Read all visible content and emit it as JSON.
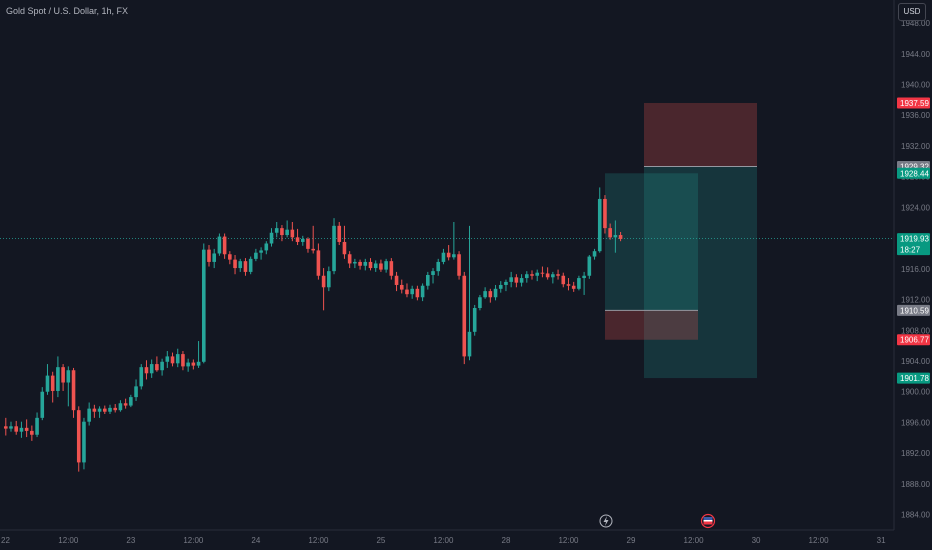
{
  "header": {
    "title": "Gold Spot / U.S. Dollar, 1h, FX",
    "currency_label": "USD"
  },
  "colors": {
    "background": "#131722",
    "up": "#26a69a",
    "down": "#ef5350",
    "grid_text": "#787b86",
    "axis_line": "#2a2e39",
    "profit_zone": "#26a69a",
    "loss_zone": "#ef5350"
  },
  "icons": [
    "lightning-icon",
    "flag-icon"
  ],
  "chart_data": {
    "type": "candlestick",
    "symbol": "Gold Spot / U.S. Dollar",
    "interval": "1h",
    "source": "FX",
    "ylim": [
      1882,
      1951
    ],
    "y_ticks": [
      1884,
      1888,
      1892,
      1896,
      1900,
      1904,
      1908,
      1912,
      1916,
      1920,
      1924,
      1928,
      1932,
      1936,
      1940,
      1944,
      1948
    ],
    "x_ticks": [
      {
        "label": "22",
        "t": 0
      },
      {
        "label": "12:00",
        "t": 12
      },
      {
        "label": "23",
        "t": 24
      },
      {
        "label": "12:00",
        "t": 36
      },
      {
        "label": "24",
        "t": 48
      },
      {
        "label": "12:00",
        "t": 60
      },
      {
        "label": "25",
        "t": 72
      },
      {
        "label": "12:00",
        "t": 84
      },
      {
        "label": "28",
        "t": 96
      },
      {
        "label": "12:00",
        "t": 108
      },
      {
        "label": "29",
        "t": 120
      },
      {
        "label": "12:00",
        "t": 132
      },
      {
        "label": "30",
        "t": 144
      },
      {
        "label": "12:00",
        "t": 156
      },
      {
        "label": "31",
        "t": 168
      }
    ],
    "candles": [
      [
        1895.5,
        1896.6,
        1894.3,
        1895.2
      ],
      [
        1895.2,
        1896.1,
        1894.8,
        1895.5
      ],
      [
        1895.5,
        1896.2,
        1894.4,
        1894.8
      ],
      [
        1894.8,
        1896.1,
        1894.0,
        1895.3
      ],
      [
        1895.3,
        1896.4,
        1894.1,
        1894.9
      ],
      [
        1894.9,
        1895.6,
        1893.6,
        1894.4
      ],
      [
        1894.4,
        1897.3,
        1894.1,
        1896.6
      ],
      [
        1896.6,
        1900.6,
        1896.3,
        1900.0
      ],
      [
        1900.0,
        1903.6,
        1899.6,
        1902.1
      ],
      [
        1902.1,
        1902.6,
        1898.6,
        1900.1
      ],
      [
        1900.1,
        1904.6,
        1899.3,
        1903.2
      ],
      [
        1903.2,
        1903.6,
        1900.1,
        1901.2
      ],
      [
        1901.2,
        1903.3,
        1898.1,
        1902.8
      ],
      [
        1902.8,
        1903.1,
        1896.6,
        1897.6
      ],
      [
        1897.6,
        1898.1,
        1889.6,
        1890.8
      ],
      [
        1890.8,
        1896.6,
        1889.9,
        1896.1
      ],
      [
        1896.1,
        1898.6,
        1895.6,
        1897.8
      ],
      [
        1897.8,
        1898.3,
        1896.6,
        1897.4
      ],
      [
        1897.4,
        1898.1,
        1896.6,
        1897.8
      ],
      [
        1897.8,
        1898.2,
        1897.1,
        1897.4
      ],
      [
        1897.4,
        1898.3,
        1897.1,
        1897.9
      ],
      [
        1897.9,
        1898.4,
        1897.3,
        1897.6
      ],
      [
        1897.6,
        1898.9,
        1897.4,
        1898.5
      ],
      [
        1898.5,
        1899.1,
        1897.8,
        1898.2
      ],
      [
        1898.2,
        1899.6,
        1898.0,
        1899.3
      ],
      [
        1899.3,
        1901.6,
        1898.8,
        1900.7
      ],
      [
        1900.7,
        1903.6,
        1900.3,
        1903.2
      ],
      [
        1903.2,
        1904.1,
        1901.6,
        1902.4
      ],
      [
        1902.4,
        1904.2,
        1901.8,
        1903.6
      ],
      [
        1903.6,
        1904.6,
        1902.6,
        1902.8
      ],
      [
        1902.8,
        1904.3,
        1902.1,
        1903.9
      ],
      [
        1903.9,
        1905.3,
        1903.1,
        1904.6
      ],
      [
        1904.6,
        1905.1,
        1903.3,
        1903.7
      ],
      [
        1903.7,
        1905.6,
        1903.2,
        1904.9
      ],
      [
        1904.9,
        1905.3,
        1902.8,
        1903.3
      ],
      [
        1903.3,
        1904.3,
        1902.6,
        1903.8
      ],
      [
        1903.8,
        1904.2,
        1902.9,
        1903.4
      ],
      [
        1903.4,
        1906.6,
        1903.1,
        1903.9
      ],
      [
        1903.9,
        1919.3,
        1903.7,
        1918.5
      ],
      [
        1918.5,
        1919.1,
        1916.3,
        1916.9
      ],
      [
        1916.9,
        1918.6,
        1916.1,
        1918.0
      ],
      [
        1918.0,
        1920.6,
        1917.7,
        1920.2
      ],
      [
        1920.2,
        1920.6,
        1917.3,
        1917.9
      ],
      [
        1917.9,
        1918.3,
        1916.6,
        1917.2
      ],
      [
        1917.2,
        1917.8,
        1915.3,
        1916.1
      ],
      [
        1916.1,
        1917.3,
        1915.6,
        1917.0
      ],
      [
        1917.0,
        1917.4,
        1915.1,
        1915.6
      ],
      [
        1915.6,
        1917.6,
        1915.3,
        1917.3
      ],
      [
        1917.3,
        1918.6,
        1917.0,
        1918.1
      ],
      [
        1918.1,
        1918.8,
        1917.2,
        1918.4
      ],
      [
        1918.4,
        1919.6,
        1917.9,
        1919.3
      ],
      [
        1919.3,
        1921.3,
        1918.9,
        1920.7
      ],
      [
        1920.7,
        1922.1,
        1920.1,
        1921.3
      ],
      [
        1921.3,
        1921.7,
        1919.6,
        1920.4
      ],
      [
        1920.4,
        1922.3,
        1920.1,
        1921.1
      ],
      [
        1921.1,
        1922.1,
        1919.6,
        1920.1
      ],
      [
        1920.1,
        1921.2,
        1919.1,
        1919.5
      ],
      [
        1919.5,
        1920.3,
        1919.0,
        1919.9
      ],
      [
        1919.9,
        1920.1,
        1918.1,
        1918.6
      ],
      [
        1918.6,
        1921.6,
        1918.0,
        1918.4
      ],
      [
        1918.4,
        1919.3,
        1914.6,
        1915.1
      ],
      [
        1915.1,
        1916.1,
        1910.6,
        1913.6
      ],
      [
        1913.6,
        1916.3,
        1913.1,
        1915.7
      ],
      [
        1915.7,
        1922.6,
        1915.3,
        1921.6
      ],
      [
        1921.6,
        1922.1,
        1919.1,
        1919.5
      ],
      [
        1919.5,
        1921.6,
        1917.3,
        1917.9
      ],
      [
        1917.9,
        1918.3,
        1916.1,
        1916.7
      ],
      [
        1916.7,
        1917.3,
        1916.1,
        1916.9
      ],
      [
        1916.9,
        1917.2,
        1915.9,
        1916.4
      ],
      [
        1916.4,
        1917.3,
        1915.8,
        1916.9
      ],
      [
        1916.9,
        1917.4,
        1915.8,
        1916.1
      ],
      [
        1916.1,
        1917.1,
        1915.6,
        1916.7
      ],
      [
        1916.7,
        1917.2,
        1915.6,
        1915.9
      ],
      [
        1915.9,
        1917.3,
        1915.5,
        1917.0
      ],
      [
        1917.0,
        1917.4,
        1914.6,
        1915.1
      ],
      [
        1915.1,
        1915.6,
        1913.1,
        1913.9
      ],
      [
        1913.9,
        1914.6,
        1912.8,
        1913.3
      ],
      [
        1913.3,
        1914.1,
        1912.3,
        1912.7
      ],
      [
        1912.7,
        1913.8,
        1912.1,
        1913.4
      ],
      [
        1913.4,
        1913.8,
        1911.9,
        1912.3
      ],
      [
        1912.3,
        1914.1,
        1911.8,
        1913.8
      ],
      [
        1913.8,
        1915.6,
        1913.3,
        1915.2
      ],
      [
        1915.2,
        1916.1,
        1914.1,
        1915.7
      ],
      [
        1915.7,
        1917.3,
        1915.1,
        1916.9
      ],
      [
        1916.9,
        1918.6,
        1916.6,
        1918.1
      ],
      [
        1918.1,
        1919.1,
        1917.1,
        1917.5
      ],
      [
        1917.5,
        1922.1,
        1917.2,
        1917.9
      ],
      [
        1917.9,
        1918.3,
        1914.6,
        1915.1
      ],
      [
        1915.1,
        1915.6,
        1903.6,
        1904.6
      ],
      [
        1904.6,
        1921.6,
        1904.1,
        1907.8
      ],
      [
        1907.8,
        1911.3,
        1907.3,
        1910.9
      ],
      [
        1910.9,
        1912.6,
        1910.6,
        1912.3
      ],
      [
        1912.3,
        1913.6,
        1912.1,
        1913.1
      ],
      [
        1913.1,
        1913.4,
        1911.6,
        1912.3
      ],
      [
        1912.3,
        1913.9,
        1911.9,
        1913.4
      ],
      [
        1913.4,
        1914.4,
        1912.9,
        1913.9
      ],
      [
        1913.9,
        1914.6,
        1913.1,
        1914.3
      ],
      [
        1914.3,
        1915.6,
        1913.6,
        1914.9
      ],
      [
        1914.9,
        1915.3,
        1913.6,
        1914.2
      ],
      [
        1914.2,
        1915.3,
        1913.7,
        1914.8
      ],
      [
        1914.8,
        1915.7,
        1914.2,
        1915.3
      ],
      [
        1915.3,
        1915.8,
        1914.6,
        1915.1
      ],
      [
        1915.1,
        1915.9,
        1914.4,
        1915.5
      ],
      [
        1915.5,
        1916.3,
        1914.9,
        1915.4
      ],
      [
        1915.4,
        1916.2,
        1914.6,
        1914.9
      ],
      [
        1914.9,
        1915.6,
        1914.1,
        1915.3
      ],
      [
        1915.3,
        1915.9,
        1914.6,
        1915.1
      ],
      [
        1915.1,
        1915.5,
        1913.6,
        1914.0
      ],
      [
        1914.0,
        1914.8,
        1913.2,
        1913.8
      ],
      [
        1913.8,
        1914.3,
        1913.0,
        1913.4
      ],
      [
        1913.4,
        1915.1,
        1913.2,
        1914.8
      ],
      [
        1914.8,
        1915.6,
        1912.6,
        1915.1
      ],
      [
        1915.1,
        1917.8,
        1914.7,
        1917.6
      ],
      [
        1917.6,
        1918.6,
        1917.2,
        1918.3
      ],
      [
        1918.3,
        1926.6,
        1918.1,
        1925.1
      ],
      [
        1925.1,
        1925.6,
        1920.6,
        1921.3
      ],
      [
        1921.3,
        1921.9,
        1919.8,
        1920.1
      ],
      [
        1920.1,
        1922.3,
        1918.1,
        1920.4
      ],
      [
        1920.4,
        1920.8,
        1919.6,
        1919.9
      ]
    ],
    "current_price": 1919.93,
    "position": {
      "type": "long-short-ranges",
      "outer_entry": 1929.32,
      "outer_stop": 1937.59,
      "outer_target": 1901.78,
      "inner_entry": 1910.59,
      "inner_stop": 1906.77,
      "inner_target": 1928.44
    },
    "price_labels": [
      {
        "key": "outer_stop",
        "value": "1937.59",
        "kind": "loss"
      },
      {
        "key": "outer_entry",
        "value": "1929.32",
        "kind": "entry"
      },
      {
        "key": "inner_target",
        "value": "1928.44",
        "kind": "profit"
      },
      {
        "key": "current",
        "value": "1919.93",
        "kind": "current"
      },
      {
        "key": "inner_entry",
        "value": "1910.59",
        "kind": "entry"
      },
      {
        "key": "inner_stop",
        "value": "1906.77",
        "kind": "loss"
      },
      {
        "key": "outer_target",
        "value": "1901.78",
        "kind": "profit"
      }
    ],
    "countdown": "18:27"
  }
}
